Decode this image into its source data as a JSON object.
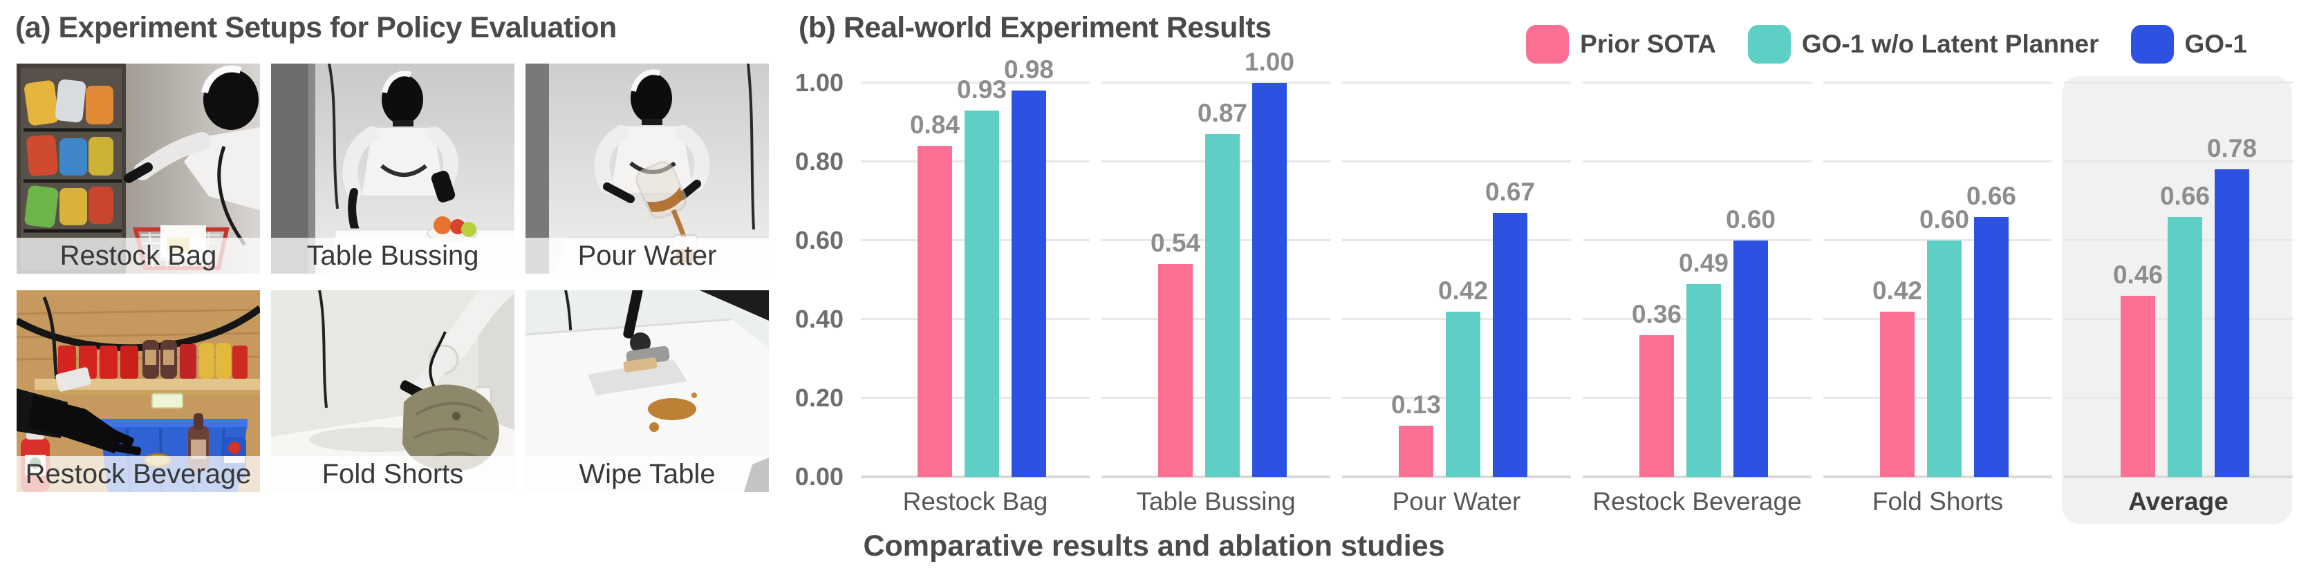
{
  "panel_a": {
    "title": "(a) Experiment Setups for Policy Evaluation",
    "photos": [
      {
        "label": "Restock Bag"
      },
      {
        "label": "Table Bussing"
      },
      {
        "label": "Pour Water"
      },
      {
        "label": "Restock Beverage"
      },
      {
        "label": "Fold Shorts"
      },
      {
        "label": "Wipe Table"
      }
    ]
  },
  "panel_b": {
    "title": "(b) Real-world Experiment Results",
    "caption": "Comparative results and ablation studies"
  },
  "legend": [
    {
      "label": "Prior SOTA",
      "color": "#FA6F92"
    },
    {
      "label": "GO-1 w/o Latent Planner",
      "color": "#5DCFC4"
    },
    {
      "label": "GO-1",
      "color": "#2D52E2"
    }
  ],
  "chart_data": {
    "type": "bar",
    "title": "(b) Real-world Experiment Results",
    "xlabel": "",
    "ylabel": "",
    "categories": [
      "Restock Bag",
      "Table Bussing",
      "Pour Water",
      "Restock Beverage",
      "Fold Shorts",
      "Average"
    ],
    "series": [
      {
        "name": "Prior SOTA",
        "color": "#FA6F92",
        "values": [
          0.84,
          0.54,
          0.13,
          0.36,
          0.42,
          0.46
        ]
      },
      {
        "name": "GO-1 w/o Latent Planner",
        "color": "#5DCFC4",
        "values": [
          0.93,
          0.87,
          0.42,
          0.49,
          0.6,
          0.66
        ]
      },
      {
        "name": "GO-1",
        "color": "#2D52E2",
        "values": [
          0.98,
          1.0,
          0.67,
          0.6,
          0.66,
          0.78
        ]
      }
    ],
    "ylim": [
      0,
      1.0
    ],
    "yticks": [
      "0.00",
      "0.20",
      "0.40",
      "0.60",
      "0.80",
      "1.00"
    ],
    "grid": true,
    "legend_position": "top-right",
    "highlight_category": "Average",
    "caption": "Comparative results and ablation studies"
  }
}
